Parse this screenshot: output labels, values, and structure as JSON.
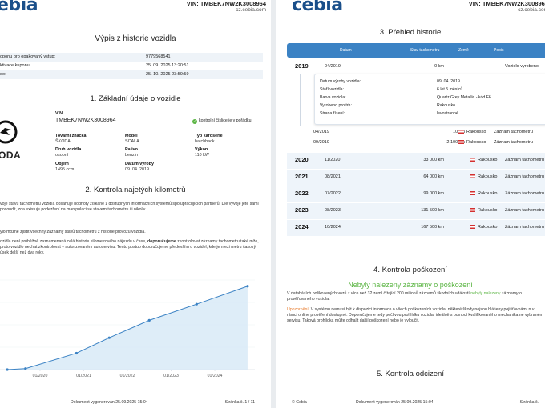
{
  "brand": "cebia",
  "brand_partial": "ebia",
  "vin_header": "VIN: TMBEK7NW2K3008964",
  "site": "cz.cebia.com",
  "page1": {
    "report_title": "Výpis z historie vozidla",
    "coupon_rows": [
      {
        "label": "oponu pro opakovaný vstup:",
        "value": "9779568541"
      },
      {
        "label": "ktivace kuponu:",
        "value": "25. 09. 2025 13:20:51"
      },
      {
        "label": "do:",
        "value": "25. 10. 2025 23:59:59"
      }
    ],
    "sec1_title": "1. Základní údaje o vozidle",
    "logo_text": "ODA",
    "vin_label": "VIN",
    "vin_value": "TMBEK7NW2K3008964",
    "vin_check": "kontrolní číslice je v pořádku",
    "fields": {
      "make_label": "Tovární značka",
      "make_value": "ŠKODA",
      "model_label": "Model",
      "model_value": "SCALA",
      "body_label": "Typ karoserie",
      "body_value": "hatchback",
      "type_label": "Druh vozidla",
      "type_value": "osobní",
      "fuel_label": "Palivo",
      "fuel_value": "benzín",
      "power_label": "Výkon",
      "power_value": "110 kW",
      "volume_label": "Objem",
      "volume_value": "1495 ccm",
      "mfg_label": "Datum výroby",
      "mfg_value": "09. 04. 2019"
    },
    "sec2_title": "2. Kontrola najetých kilometrů",
    "para1": "voje stavu tachometru vozidla obsahuje hodnoty získané z dostupných informačních systémů spolupracujících partnerů. Dle vývoje jete sami posoudit, zda existuje podezření na manipulaci se stavem tachometru či nikoliv.",
    "para2": "ylo možné zjistit všechny záznamy stavů tachometru z historie provozu vozidla.",
    "para3": "ozidla není průběžně zaznamenaná celá historie kilometrového nájezdu v čase, doporučujeme zkontrolovat záznamy tachometru také mže, proto vozidlo nechat zkontrolovat v autorizovaném autoservisu. Tento postup doporučujeme především u vozidel, kde je mezi metru časový úsek delší než dva roky.",
    "para3_bold": "doporučujeme",
    "footer_center": "Dokument vygenerován 25.09.2025 15:04",
    "footer_right": "Stránka č. 1 / 11"
  },
  "chart_data": {
    "type": "line",
    "x": [
      "2019-04",
      "2019-09",
      "2020-11",
      "2021-08",
      "2022-07",
      "2023-08",
      "2024-10"
    ],
    "values": [
      10,
      2100,
      33000,
      64000,
      99000,
      131500,
      167500
    ],
    "xticks": [
      "01/2020",
      "01/2021",
      "01/2022",
      "01/2023",
      "01/2024"
    ],
    "ylim": [
      0,
      180000
    ],
    "title": "",
    "xlabel": "",
    "ylabel": "",
    "color": "#3b82c4",
    "fill": "#d6e8f6"
  },
  "page2": {
    "sec3_title": "3. Přehled historie",
    "cols": {
      "date": "Datum",
      "km": "Stav tachometru",
      "country": "Země",
      "desc": "Popis"
    },
    "rows": [
      {
        "year": "2019",
        "date": "04/2019",
        "km": "0 km",
        "country": "",
        "desc": "Vozidlo vyrobeno"
      },
      {
        "year": "2020",
        "date": "11/2020",
        "km": "33 000 km",
        "country": "Rakousko",
        "desc": "Záznam tachometru"
      },
      {
        "year": "2021",
        "date": "08/2021",
        "km": "64 000 km",
        "country": "Rakousko",
        "desc": "Záznam tachometru"
      },
      {
        "year": "2022",
        "date": "07/2022",
        "km": "99 000 km",
        "country": "Rakousko",
        "desc": "Záznam tachometru"
      },
      {
        "year": "2023",
        "date": "08/2023",
        "km": "131 500 km",
        "country": "Rakousko",
        "desc": "Záznam tachometru"
      },
      {
        "year": "2024",
        "date": "10/2024",
        "km": "167 500 km",
        "country": "Rakousko",
        "desc": "Záznam tachometru"
      }
    ],
    "detail": [
      {
        "label": "Datum výroby vozidla:",
        "value": "09. 04. 2019"
      },
      {
        "label": "Stáří vozidla:",
        "value": "6 let 5 měsíců"
      },
      {
        "label": "Barva vozidla:",
        "value": "Quartz Grey Metallic - kód F6"
      },
      {
        "label": "Vyrobeno pro trh:",
        "value": "Rakousko"
      },
      {
        "label": "Strana řízení:",
        "value": "levostranné"
      }
    ],
    "sub_rows": [
      {
        "date": "04/2019",
        "km": "10 km",
        "country": "Rakousko",
        "desc": "Záznam tachometru"
      },
      {
        "date": "09/2019",
        "km": "2 100 km",
        "country": "Rakousko",
        "desc": "Záznam tachometru"
      }
    ],
    "sec4_title": "4. Kontrola poškození",
    "damage_headline": "Nebyly nalezeny záznamy o poškození",
    "damage_para": "V databázích poškozených vozů z více než 32 zemí čítající 200 milionů záznamů škodních událostí nebyly nalezeny záznamy o prověřovaného vozidla.",
    "damage_hl": "nebyly nalezeny",
    "warn_label": "Upozornění:",
    "warn_para": "V systému nemusí být k dispozici informace o všech poškozeních vozidla, některé škody nejsou hlášeny pojišťovnám, n v rámci online prověření dostupné. Doporučujeme tedy pečlivou prohlídku vozidla, ideálně s pomocí kvalifikovaného mechanika ne vybraném servisu. Taková prohlídka může odhalit další poškození nebo je vyloučit.",
    "sec5_title": "5. Kontrola odcizení",
    "footer_left": "© Cebia",
    "footer_center": "Dokument vygenerován 25.09.2025 15:04",
    "footer_right": "Stránka č."
  }
}
